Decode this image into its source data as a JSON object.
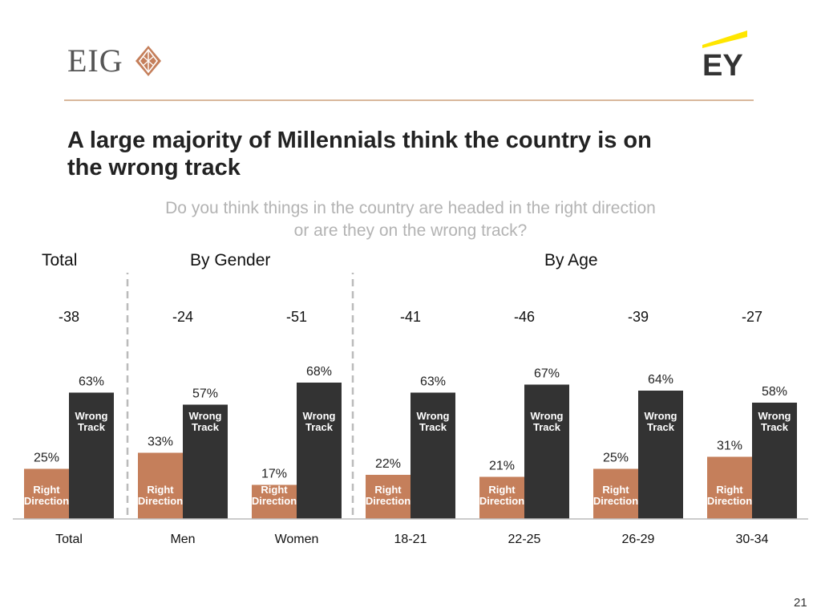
{
  "brand": {
    "left_logo": "EIG",
    "right_logo": "EY"
  },
  "title_line1": "A large majority of Millennials think the country is on",
  "title_line2": "the wrong track",
  "subtitle_line1": "Do you think things in the country are headed in the right direction",
  "subtitle_line2": "or are they on the wrong track?",
  "sections": {
    "total": "Total",
    "gender": "By Gender",
    "age": "By Age"
  },
  "page_number": "21",
  "colors": {
    "right_direction": "#c57f5b",
    "wrong_track": "#333333",
    "divider": "#bbbbbb"
  },
  "chart_data": {
    "type": "bar",
    "title": "Do you think things in the country are headed in the right direction or are they on the wrong track?",
    "categories": [
      "Total",
      "Men",
      "Women",
      "18-21",
      "22-25",
      "26-29",
      "30-34"
    ],
    "groups": [
      {
        "name": "Total",
        "categories": [
          "Total"
        ]
      },
      {
        "name": "By Gender",
        "categories": [
          "Men",
          "Women"
        ]
      },
      {
        "name": "By Age",
        "categories": [
          "18-21",
          "22-25",
          "26-29",
          "30-34"
        ]
      }
    ],
    "series": [
      {
        "name": "Right Direction",
        "label_lines": [
          "Right",
          "Direction"
        ],
        "values": [
          25,
          33,
          17,
          22,
          21,
          25,
          31
        ]
      },
      {
        "name": "Wrong Track",
        "label_lines": [
          "Wrong",
          "Track"
        ],
        "values": [
          63,
          57,
          68,
          63,
          67,
          64,
          58
        ]
      }
    ],
    "value_labels": {
      "right": [
        "25%",
        "33%",
        "17%",
        "22%",
        "21%",
        "25%",
        "31%"
      ],
      "wrong": [
        "63%",
        "57%",
        "68%",
        "63%",
        "67%",
        "64%",
        "58%"
      ]
    },
    "net_labels": [
      "-38",
      "-24",
      "-51",
      "-41",
      "-46",
      "-39",
      "-27"
    ],
    "ylim": [
      0,
      100
    ],
    "xlabel": "",
    "ylabel": ""
  }
}
